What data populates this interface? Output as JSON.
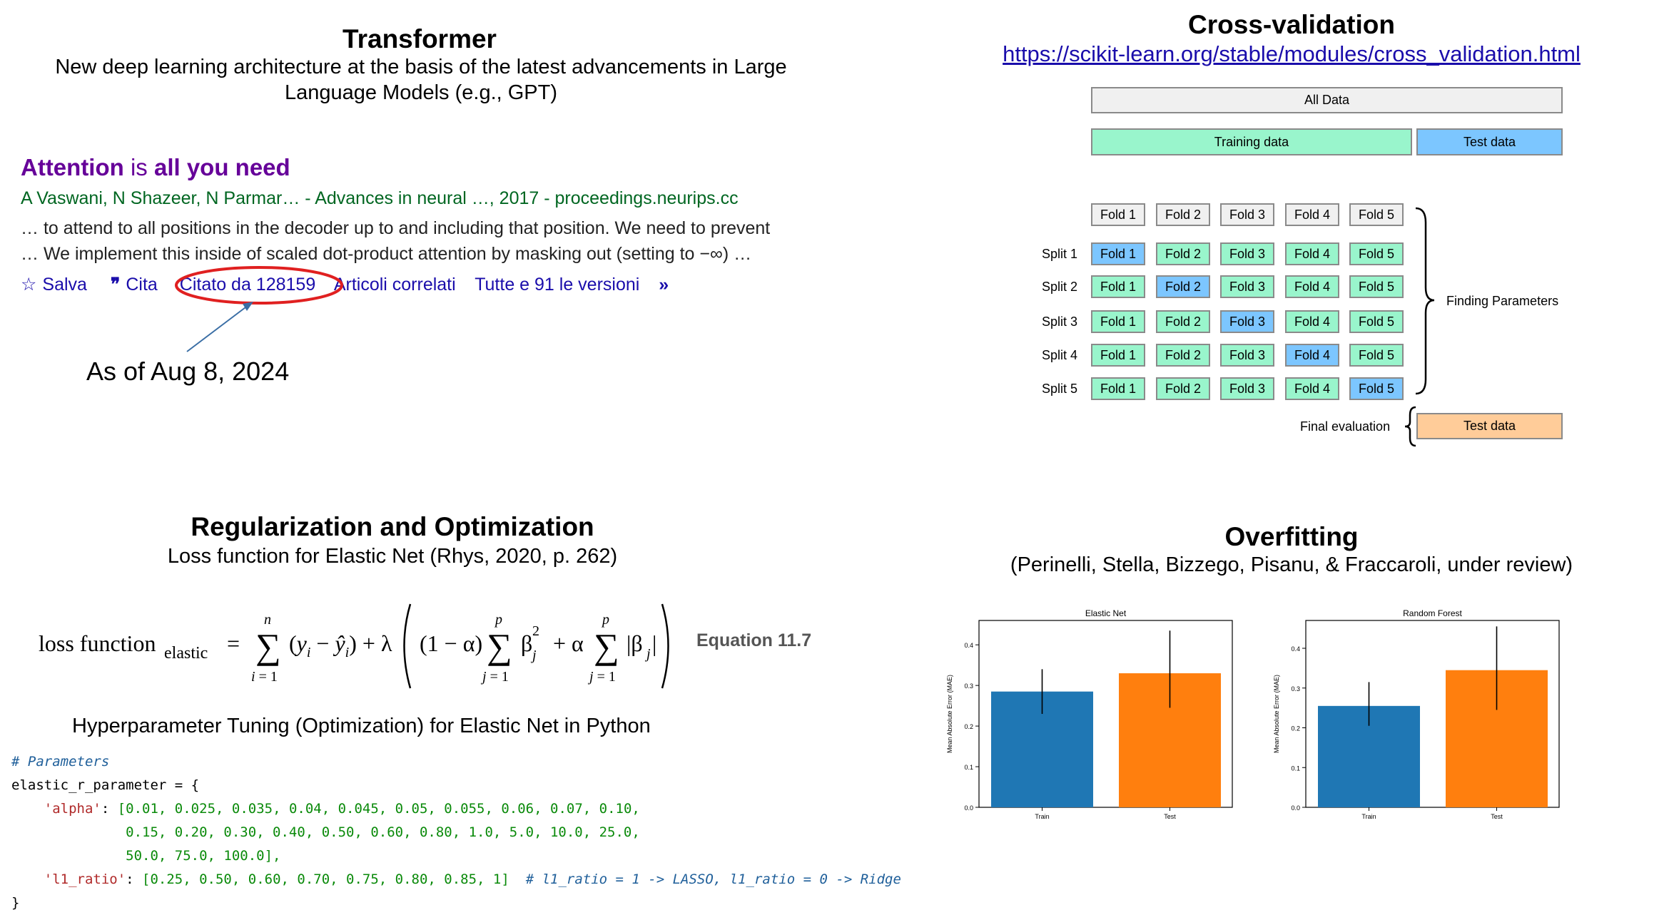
{
  "transformer": {
    "title": "Transformer",
    "subtitle_line1": "New deep learning architecture at the basis of the latest advancements in Large",
    "subtitle_line2": "Language Models (e.g., GPT)",
    "paper_title_a": "Attention",
    "paper_title_b": " is ",
    "paper_title_c": "all you need",
    "authors": "A Vaswani, N Shazeer, N Parmar… - Advances in neural …, 2017 - proceedings.neurips.cc",
    "snippet_line1": "… to attend to all positions in the decoder up to and including that position. We need to prevent",
    "snippet_line2": "… We implement this inside of scaled dot-product attention by masking out (setting to −∞) …",
    "links": {
      "save": "Salva",
      "cite": "Cita",
      "cited_by": "Citato da 128159",
      "related": "Articoli correlati",
      "versions": "Tutte e 91 le versioni"
    },
    "annotation": "As of Aug 8, 2024",
    "colors": {
      "title": "#660099",
      "authors": "#006621",
      "link": "#1a0dab",
      "circle": "#e02020"
    }
  },
  "cross_validation": {
    "title": "Cross-validation",
    "url": "https://scikit-learn.org/stable/modules/cross_validation.html",
    "all_data": "All Data",
    "training_data": "Training data",
    "test_data": "Test data",
    "folds": [
      "Fold 1",
      "Fold 2",
      "Fold 3",
      "Fold 4",
      "Fold 5"
    ],
    "splits": [
      "Split 1",
      "Split 2",
      "Split 3",
      "Split 4",
      "Split 5"
    ],
    "finding_parameters": "Finding Parameters",
    "final_evaluation": "Final evaluation",
    "final_test": "Test data"
  },
  "regularization": {
    "title": "Regularization and Optimization",
    "subtitle": "Loss function for Elastic Net (Rhys, 2020, p. 262)",
    "equation_label": "Equation 11.7",
    "tuning_heading": "Hyperparameter Tuning (Optimization) for Elastic Net in Python",
    "code_comment": "# Parameters",
    "code_var": "elastic_r_parameter = {",
    "alpha_key": "'alpha'",
    "alpha_line1": "[0.01, 0.025, 0.035, 0.04, 0.045, 0.05, 0.055, 0.06, 0.07, 0.10,",
    "alpha_line2": "0.15, 0.20, 0.30, 0.40, 0.50, 0.60, 0.80, 1.0, 5.0, 10.0, 25.0,",
    "alpha_line3": "50.0, 75.0, 100.0],",
    "l1_key": "'l1_ratio'",
    "l1_values": "[0.25, 0.50, 0.60, 0.70, 0.75, 0.80, 0.85, 1]",
    "l1_comment": "# l1_ratio = 1 -> LASSO, l1_ratio = 0 -> Ridge",
    "code_close": "}"
  },
  "overfitting": {
    "title": "Overfitting",
    "subtitle": "(Perinelli, Stella, Bizzego, Pisanu, & Fraccaroli, under review)"
  },
  "chart_data": [
    {
      "type": "bar",
      "title": "Elastic Net",
      "ylabel": "Mean Absolute Error (MAE)",
      "categories": [
        "Train",
        "Test"
      ],
      "values": [
        0.285,
        0.33
      ],
      "error_low": [
        0.23,
        0.245
      ],
      "error_high": [
        0.34,
        0.435
      ],
      "ylim": [
        0,
        0.46
      ],
      "yticks": [
        "0.0",
        "0.1",
        "0.2",
        "0.3",
        "0.4"
      ],
      "colors": [
        "#1f77b4",
        "#ff7f0e"
      ]
    },
    {
      "type": "bar",
      "title": "Random Forest",
      "ylabel": "Mean Absolute Error (MAE)",
      "categories": [
        "Train",
        "Test"
      ],
      "values": [
        0.255,
        0.345
      ],
      "error_low": [
        0.205,
        0.245
      ],
      "error_high": [
        0.315,
        0.455
      ],
      "ylim": [
        0,
        0.47
      ],
      "yticks": [
        "0.0",
        "0.1",
        "0.2",
        "0.3",
        "0.4"
      ],
      "colors": [
        "#1f77b4",
        "#ff7f0e"
      ]
    }
  ]
}
